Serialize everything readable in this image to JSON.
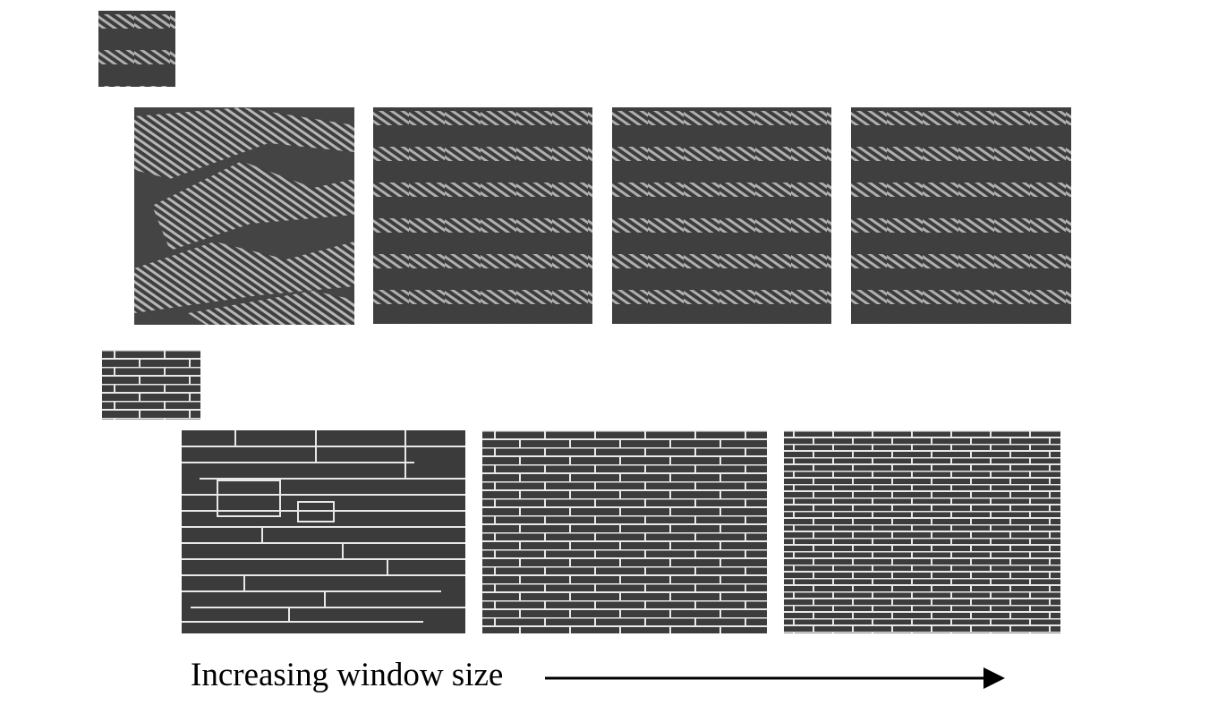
{
  "figure": {
    "caption": "Increasing window size",
    "rows": [
      {
        "name": "stripe-texture",
        "sample": "stripe-sample",
        "results": [
          "stripe-result-1",
          "stripe-result-2",
          "stripe-result-3",
          "stripe-result-4"
        ]
      },
      {
        "name": "brick-texture",
        "sample": "brick-sample",
        "results": [
          "brick-result-1",
          "brick-result-2",
          "brick-result-3"
        ]
      }
    ],
    "arrow_icon": "right-arrow-icon",
    "colors": {
      "texture_dark": "#3e3e3e",
      "texture_light": "#b4b4b4",
      "mortar": "#e8e8e8",
      "text": "#000000"
    }
  }
}
